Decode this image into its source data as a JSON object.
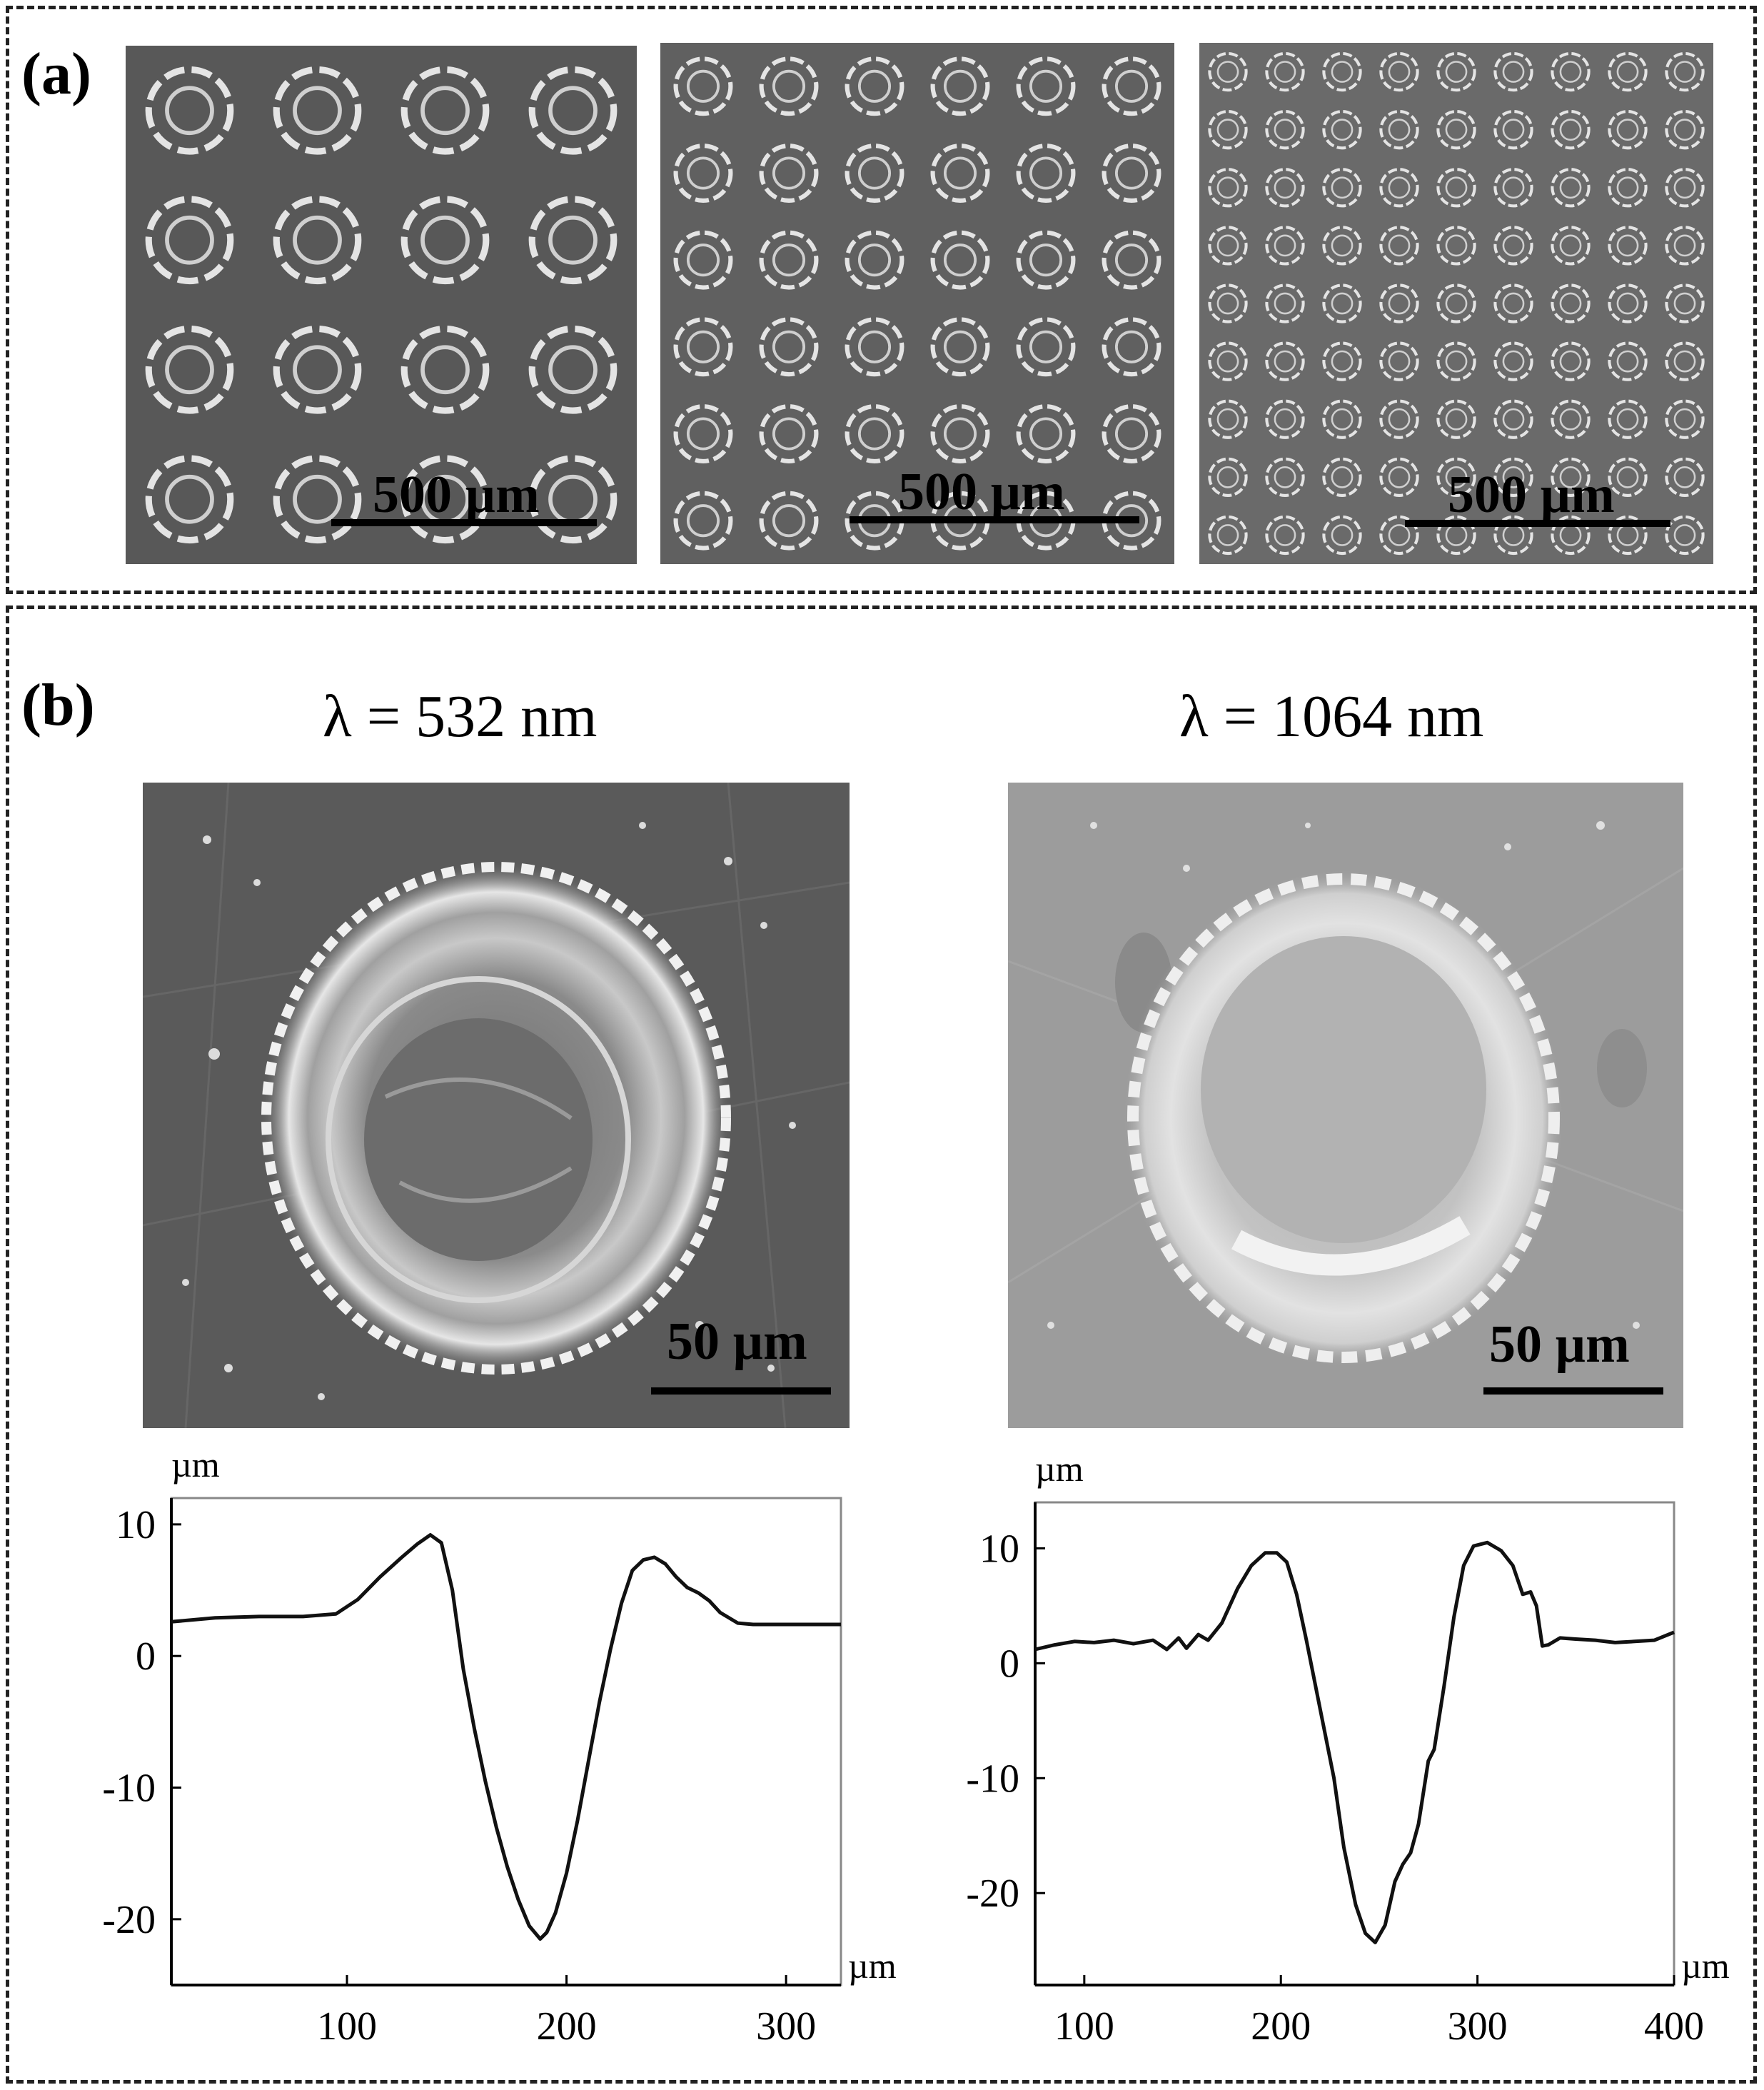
{
  "panel_a": {
    "label": "(a)",
    "images": [
      {
        "name": "sem-array-sparse",
        "grid": 4,
        "scale_text": "500 µm"
      },
      {
        "name": "sem-array-medium",
        "grid": 6,
        "scale_text": "500 µm"
      },
      {
        "name": "sem-array-dense",
        "grid": 9,
        "scale_text": "500 µm"
      }
    ]
  },
  "panel_b": {
    "label": "(b)",
    "left": {
      "title": "λ = 532 nm",
      "scale_text": "50 µm"
    },
    "right": {
      "title": "λ = 1064 nm",
      "scale_text": "50 µm"
    }
  },
  "chart_data": [
    {
      "type": "line",
      "title": "",
      "xlabel": "µm",
      "ylabel": "µm",
      "xlim": [
        20,
        325
      ],
      "ylim": [
        -25,
        12
      ],
      "xticks": [
        100,
        200,
        300
      ],
      "yticks": [
        10,
        0,
        -10,
        -20
      ],
      "grid": false,
      "series": [
        {
          "x": [
            20,
            40,
            60,
            80,
            95,
            105,
            115,
            125,
            132,
            138,
            143,
            148,
            153,
            158,
            163,
            168,
            173,
            178,
            183,
            188,
            191,
            195,
            200,
            205,
            210,
            215,
            220,
            225,
            230,
            235,
            240,
            245,
            250,
            255,
            260,
            265,
            270,
            278,
            285,
            300,
            325
          ],
          "y": [
            2.6,
            2.9,
            3.0,
            3.0,
            3.2,
            4.3,
            6.0,
            7.5,
            8.5,
            9.2,
            8.6,
            5.0,
            -1.0,
            -5.5,
            -9.5,
            -13.0,
            -16.0,
            -18.5,
            -20.5,
            -21.5,
            -21.0,
            -19.5,
            -16.5,
            -12.5,
            -8.0,
            -3.5,
            0.5,
            4.0,
            6.5,
            7.3,
            7.5,
            7.0,
            6.0,
            5.2,
            4.8,
            4.2,
            3.3,
            2.5,
            2.4,
            2.4,
            2.4
          ]
        }
      ]
    },
    {
      "type": "line",
      "title": "",
      "xlabel": "µm",
      "ylabel": "µm",
      "xlim": [
        75,
        400
      ],
      "ylim": [
        -28,
        14
      ],
      "xticks": [
        100,
        200,
        300,
        400
      ],
      "yticks": [
        10,
        0,
        -10,
        -20
      ],
      "grid": false,
      "series": [
        {
          "x": [
            75,
            85,
            95,
            105,
            115,
            125,
            135,
            142,
            148,
            152,
            158,
            163,
            170,
            178,
            185,
            192,
            198,
            203,
            208,
            213,
            220,
            227,
            232,
            238,
            243,
            248,
            253,
            258,
            262,
            266,
            270,
            275,
            278,
            283,
            288,
            293,
            298,
            305,
            312,
            318,
            323,
            327,
            330,
            333,
            336,
            342,
            350,
            360,
            370,
            380,
            390,
            400
          ],
          "y": [
            1.2,
            1.6,
            1.9,
            1.8,
            2.0,
            1.7,
            2.0,
            1.2,
            2.2,
            1.3,
            2.5,
            2.0,
            3.5,
            6.5,
            8.5,
            9.6,
            9.6,
            8.8,
            6.0,
            2.0,
            -4.0,
            -10.0,
            -16.0,
            -21.0,
            -23.5,
            -24.3,
            -22.8,
            -19.0,
            -17.5,
            -16.5,
            -14.0,
            -8.5,
            -7.5,
            -2.0,
            4.0,
            8.5,
            10.2,
            10.5,
            9.8,
            8.5,
            6.0,
            6.2,
            5.0,
            1.5,
            1.6,
            2.2,
            2.1,
            2.0,
            1.8,
            1.9,
            2.0,
            2.7
          ]
        }
      ]
    }
  ]
}
